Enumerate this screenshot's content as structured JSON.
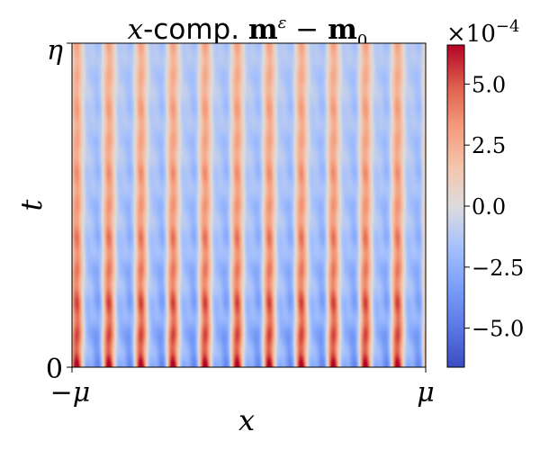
{
  "chart_data": {
    "type": "heatmap",
    "title": {
      "italic": "x",
      "middle": "-comp. ",
      "bold1": "m",
      "sup": "ε",
      "minus": " − ",
      "bold2": "m",
      "sub": "0"
    },
    "xlabel": "x",
    "ylabel": "t",
    "x_ticks": [
      "−μ",
      "μ"
    ],
    "y_ticks": [
      "0",
      "η"
    ],
    "colorbar": {
      "colormap": "coolwarm",
      "range": [
        -0.00066,
        0.00066
      ],
      "ticks": [
        {
          "value": 5.0,
          "label": "5.0"
        },
        {
          "value": 2.5,
          "label": "2.5"
        },
        {
          "value": 0.0,
          "label": "0.0"
        },
        {
          "value": -2.5,
          "label": "−2.5"
        },
        {
          "value": -5.0,
          "label": "−5.0"
        }
      ],
      "multiplier_base": "×10",
      "multiplier_exp": "−4"
    },
    "colors": {
      "low": "#3b4cc0",
      "mid": "#dddddd",
      "high": "#b40426"
    },
    "pattern": {
      "stripes_across_x": 11,
      "temporal_bands": 10,
      "description_of_field": "oscillating stripes with decaying temporal modulation"
    }
  }
}
